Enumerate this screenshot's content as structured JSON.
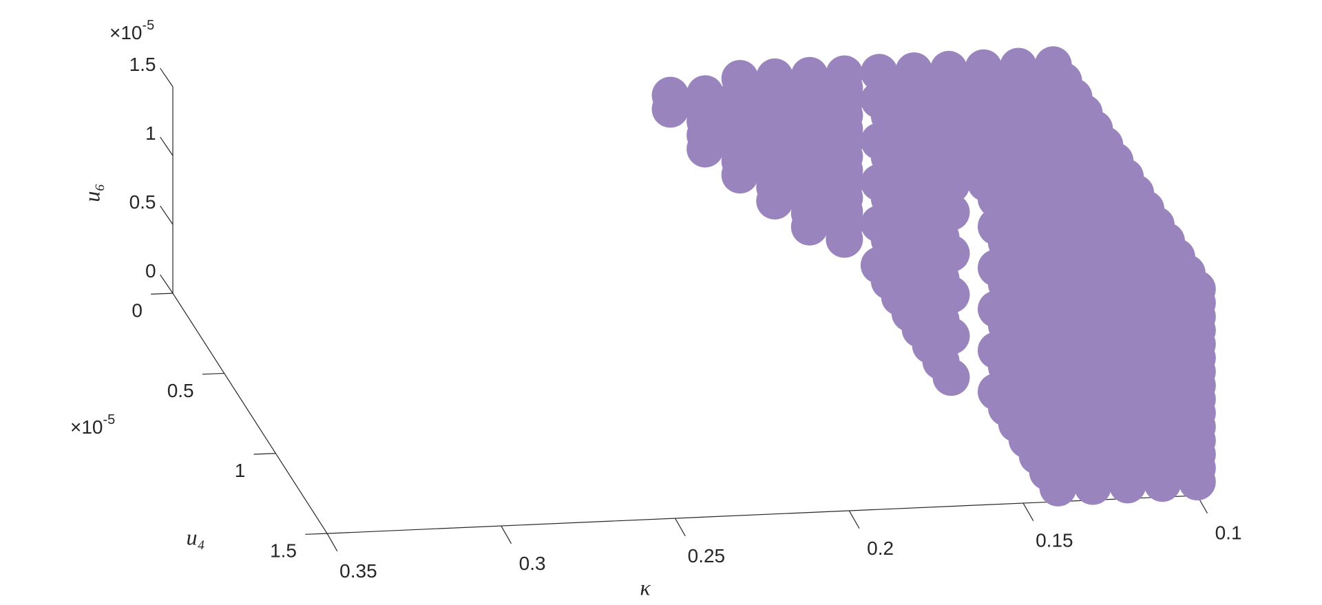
{
  "chart_data": {
    "type": "scatter3d",
    "xlabel": "κ",
    "ylabel": "u₄",
    "zlabel": "u₆",
    "y_multiplier": {
      "base": "×10",
      "exponent": "-5"
    },
    "z_multiplier": {
      "base": "×10",
      "exponent": "-5"
    },
    "xlim": [
      0.1,
      0.35
    ],
    "ylim": [
      0,
      1.5
    ],
    "zlim": [
      0,
      1.5
    ],
    "xticks": [
      0.1,
      0.15,
      0.2,
      0.25,
      0.3,
      0.35
    ],
    "yticks": [
      0,
      0.5,
      1,
      1.5
    ],
    "zticks": [
      0,
      0.5,
      1,
      1.5
    ],
    "color": "#9a84be",
    "x": [
      0.21,
      0.21,
      0.2,
      0.2,
      0.2,
      0.2,
      0.2,
      0.19,
      0.19,
      0.19,
      0.19,
      0.19,
      0.19,
      0.19,
      0.19,
      0.18,
      0.18,
      0.18,
      0.18,
      0.18,
      0.18,
      0.18,
      0.18,
      0.18,
      0.18,
      0.17,
      0.17,
      0.17,
      0.17,
      0.17,
      0.17,
      0.17,
      0.17,
      0.17,
      0.17,
      0.17,
      0.17,
      0.16,
      0.16,
      0.16,
      0.16,
      0.16,
      0.16,
      0.16,
      0.16,
      0.16,
      0.16,
      0.16,
      0.16,
      0.16,
      0.15,
      0.15,
      0.15,
      0.15,
      0.15,
      0.15,
      0.15,
      0.15,
      0.15,
      0.15,
      0.15,
      0.15,
      0.15,
      0.15,
      0.15,
      0.15,
      0.15,
      0.15,
      0.15,
      0.15,
      0.15,
      0.15,
      0.15,
      0.15,
      0.15,
      0.15,
      0.15,
      0.15,
      0.15,
      0.15,
      0.15,
      0.15,
      0.15,
      0.15,
      0.15,
      0.15,
      0.15,
      0.15,
      0.15,
      0.15,
      0.14,
      0.14,
      0.14,
      0.14,
      0.14,
      0.14,
      0.14,
      0.14,
      0.14,
      0.14,
      0.14,
      0.14,
      0.14,
      0.14,
      0.14,
      0.14,
      0.14,
      0.14,
      0.14,
      0.14,
      0.14,
      0.14,
      0.14,
      0.14,
      0.14,
      0.14,
      0.14,
      0.14,
      0.14,
      0.14,
      0.1,
      0.1,
      0.1,
      0.1,
      0.1,
      0.1,
      0.1,
      0.1,
      0.1,
      0.1,
      0.1,
      0.1,
      0.1,
      0.1,
      0.1,
      0.11,
      0.11,
      0.11,
      0.11,
      0.11,
      0.11,
      0.11,
      0.11,
      0.11,
      0.11,
      0.11,
      0.11,
      0.11,
      0.11,
      0.11,
      0.12,
      0.12,
      0.12,
      0.12,
      0.12,
      0.12,
      0.12,
      0.12,
      0.12,
      0.12,
      0.12,
      0.12,
      0.12,
      0.12,
      0.12,
      0.13,
      0.13,
      0.13,
      0.13,
      0.13,
      0.13,
      0.13,
      0.13,
      0.13,
      0.13,
      0.13,
      0.13,
      0.13,
      0.13,
      0.13,
      0.14,
      0.14,
      0.14,
      0.14,
      0.14,
      0.14,
      0.14,
      0.14,
      0.14,
      0.14,
      0.14,
      0.14,
      0.14,
      0.14,
      0.14,
      0.15,
      0.15,
      0.15,
      0.15,
      0.15,
      0.15,
      0.15,
      0.15,
      0.1,
      0.1,
      0.1,
      0.1,
      0.1,
      0.1,
      0.1,
      0.1,
      0.1,
      0.1,
      0.1,
      0.1,
      0.1,
      0.1,
      0.11,
      0.11,
      0.11,
      0.11,
      0.11,
      0.11,
      0.11,
      0.11,
      0.11,
      0.11,
      0.11,
      0.11,
      0.11,
      0.11,
      0.12,
      0.12,
      0.12,
      0.12,
      0.12,
      0.12,
      0.12,
      0.12,
      0.12,
      0.12,
      0.12,
      0.12,
      0.12,
      0.12,
      0.13,
      0.13,
      0.13,
      0.13,
      0.13,
      0.13,
      0.13,
      0.13,
      0.13,
      0.13,
      0.13,
      0.13,
      0.13,
      0.13,
      0.14,
      0.14,
      0.14,
      0.14,
      0.14,
      0.14,
      0.14,
      0.14,
      0.14,
      0.14,
      0.14,
      0.14,
      0.14,
      0.14
    ],
    "y": [
      0.1,
      0.1,
      0.1,
      0.1,
      0.1,
      0.1,
      0.1,
      0.1,
      0.1,
      0.1,
      0.1,
      0.1,
      0.1,
      0.1,
      0.1,
      0.1,
      0.1,
      0.1,
      0.1,
      0.1,
      0.1,
      0.1,
      0.1,
      0.1,
      0.1,
      0.1,
      0.1,
      0.1,
      0.1,
      0.1,
      0.1,
      0.1,
      0.1,
      0.1,
      0.1,
      0.1,
      0.1,
      0.1,
      0.1,
      0.1,
      0.1,
      0.1,
      0.1,
      0.1,
      0.1,
      0.1,
      0.1,
      0.1,
      0.1,
      0.1,
      0.1,
      0.1,
      0.1,
      0.1,
      0.1,
      0.2,
      0.2,
      0.2,
      0.2,
      0.2,
      0.3,
      0.3,
      0.3,
      0.3,
      0.3,
      0.4,
      0.4,
      0.4,
      0.4,
      0.4,
      0.5,
      0.5,
      0.5,
      0.5,
      0.5,
      0.6,
      0.6,
      0.6,
      0.6,
      0.6,
      0.7,
      0.7,
      0.7,
      0.7,
      0.7,
      0.8,
      0.8,
      0.8,
      0.8,
      0.8,
      0.9,
      0.9,
      0.9,
      0.9,
      0.9,
      1,
      1,
      1,
      1,
      1,
      1.1,
      1.1,
      1.1,
      1.1,
      1.1,
      1.2,
      1.2,
      1.2,
      1.2,
      1.2,
      1.3,
      1.3,
      1.3,
      1.3,
      1.3,
      1.4,
      1.4,
      1.4,
      1.4,
      1.4,
      0.1,
      0.2,
      0.3,
      0.4,
      0.5,
      0.6,
      0.7,
      0.8,
      0.9,
      1,
      1.1,
      1.2,
      1.3,
      1.4,
      1.5,
      0.1,
      0.2,
      0.3,
      0.4,
      0.5,
      0.6,
      0.7,
      0.8,
      0.9,
      1,
      1.1,
      1.2,
      1.3,
      1.4,
      1.5,
      0.1,
      0.2,
      0.3,
      0.4,
      0.5,
      0.6,
      0.7,
      0.8,
      0.9,
      1,
      1.1,
      1.2,
      1.3,
      1.4,
      1.5,
      0.1,
      0.2,
      0.3,
      0.4,
      0.5,
      0.6,
      0.7,
      0.8,
      0.9,
      1,
      1.1,
      1.2,
      1.3,
      1.4,
      1.5,
      0.1,
      0.2,
      0.3,
      0.4,
      0.5,
      0.6,
      0.7,
      0.8,
      0.9,
      1,
      1.1,
      1.2,
      1.3,
      1.4,
      1.5,
      0.1,
      0.2,
      0.3,
      0.4,
      0.5,
      0.6,
      0.7,
      0.8,
      1.5,
      1.5,
      1.5,
      1.5,
      1.5,
      1.5,
      1.5,
      1.5,
      1.5,
      1.5,
      1.5,
      1.5,
      1.5,
      1.5,
      1.5,
      1.5,
      1.5,
      1.5,
      1.5,
      1.5,
      1.5,
      1.5,
      1.5,
      1.5,
      1.5,
      1.5,
      1.5,
      1.5,
      1.5,
      1.5,
      1.5,
      1.5,
      1.5,
      1.5,
      1.5,
      1.5,
      1.5,
      1.5,
      1.5,
      1.5,
      1.5,
      1.5,
      1.5,
      1.5,
      1.5,
      1.5,
      1.5,
      1.5,
      1.5,
      1.5,
      1.5,
      1.5,
      1.5,
      1.5,
      1.5,
      1.5,
      1.5,
      1.5,
      1.5,
      1.5,
      1.5,
      1.5,
      1.5,
      1.5,
      1.5,
      1.5,
      1.5,
      1.5,
      1.5,
      1.5
    ],
    "z": [
      1.3,
      1.4,
      1,
      1.1,
      1.2,
      1.3,
      1.4,
      0.8,
      0.9,
      1,
      1.1,
      1.2,
      1.3,
      1.4,
      1.5,
      0.6,
      0.7,
      0.8,
      0.9,
      1,
      1.1,
      1.2,
      1.3,
      1.4,
      1.5,
      0.4,
      0.5,
      0.6,
      0.7,
      0.8,
      0.9,
      1,
      1.1,
      1.2,
      1.3,
      1.4,
      1.5,
      0.3,
      0.4,
      0.5,
      0.6,
      0.7,
      0.8,
      0.9,
      1,
      1.1,
      1.2,
      1.3,
      1.4,
      1.5,
      0.1,
      0.4,
      0.7,
      1,
      1.3,
      0.1,
      0.4,
      0.7,
      1,
      1.3,
      0.1,
      0.4,
      0.7,
      1,
      1.3,
      0.1,
      0.4,
      0.7,
      1,
      1.3,
      0.1,
      0.4,
      0.7,
      1,
      1.3,
      0.1,
      0.4,
      0.7,
      1,
      1.3,
      0.1,
      0.4,
      0.7,
      1,
      1.3,
      0.1,
      0.4,
      0.7,
      1,
      1.3,
      0.1,
      0.4,
      0.7,
      1,
      1.3,
      0.1,
      0.4,
      0.7,
      1,
      1.3,
      0.1,
      0.4,
      0.7,
      1,
      1.3,
      0.1,
      0.4,
      0.7,
      1,
      1.3,
      0.1,
      0.4,
      0.7,
      1,
      1.3,
      0.1,
      0.4,
      0.7,
      1,
      1.3,
      1.5,
      1.5,
      1.5,
      1.5,
      1.5,
      1.5,
      1.5,
      1.5,
      1.5,
      1.5,
      1.5,
      1.5,
      1.5,
      1.5,
      1.5,
      1.5,
      1.5,
      1.5,
      1.5,
      1.5,
      1.5,
      1.5,
      1.5,
      1.5,
      1.5,
      1.5,
      1.5,
      1.5,
      1.5,
      1.5,
      1.5,
      1.5,
      1.5,
      1.5,
      1.5,
      1.5,
      1.5,
      1.5,
      1.5,
      1.5,
      1.5,
      1.5,
      1.5,
      1.5,
      1.5,
      1.5,
      1.5,
      1.5,
      1.5,
      1.5,
      1.5,
      1.5,
      1.5,
      1.5,
      1.5,
      1.5,
      1.5,
      1.5,
      1.5,
      1.5,
      1.5,
      1.5,
      1.5,
      1.5,
      1.5,
      1.5,
      1.5,
      1.5,
      1.5,
      1.5,
      1.5,
      1.5,
      1.5,
      1.5,
      1.5,
      1.5,
      1.5,
      1.5,
      1.5,
      1.5,
      1.5,
      1.5,
      1.5,
      0.1,
      0.2,
      0.3,
      0.4,
      0.5,
      0.6,
      0.7,
      0.8,
      0.9,
      1,
      1.1,
      1.2,
      1.3,
      1.4,
      0.1,
      0.2,
      0.3,
      0.4,
      0.5,
      0.6,
      0.7,
      0.8,
      0.9,
      1,
      1.1,
      1.2,
      1.3,
      1.4,
      0.1,
      0.2,
      0.3,
      0.4,
      0.5,
      0.6,
      0.7,
      0.8,
      0.9,
      1,
      1.1,
      1.2,
      1.3,
      1.4,
      0.1,
      0.2,
      0.3,
      0.4,
      0.5,
      0.6,
      0.7,
      0.8,
      0.9,
      1,
      1.1,
      1.2,
      1.3,
      1.4,
      0.1,
      0.2,
      0.3,
      0.4,
      0.5,
      0.6,
      0.7,
      0.8,
      0.9,
      1,
      1.1,
      1.2,
      1.3,
      1.4
    ]
  }
}
